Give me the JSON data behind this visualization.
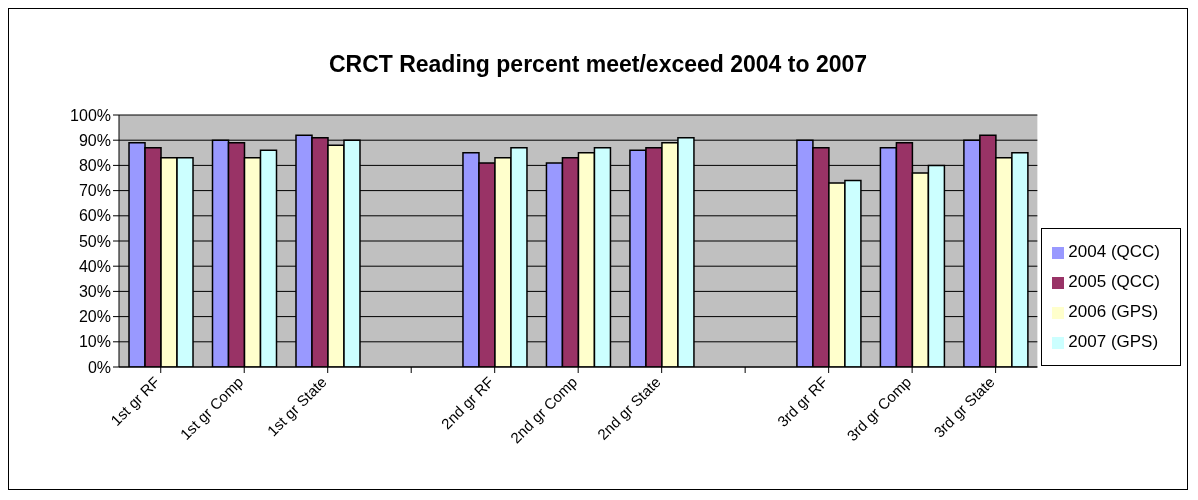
{
  "chart_data": {
    "type": "bar",
    "title": "CRCT Reading percent meet/exceed 2004 to 2007",
    "categories": [
      "1st gr RF",
      "1st gr Comp",
      "1st gr State",
      null,
      "2nd gr RF",
      "2nd gr Comp",
      "2nd gr State",
      null,
      "3rd gr RF",
      "3rd gr Comp",
      "3rd gr State"
    ],
    "series": [
      {
        "name": "2004 (QCC)",
        "color": "#9999ff",
        "values": [
          89,
          90,
          92,
          null,
          85,
          81,
          86,
          null,
          90,
          87,
          90
        ]
      },
      {
        "name": "2005 (QCC)",
        "color": "#993366",
        "values": [
          87,
          89,
          91,
          null,
          81,
          83,
          87,
          null,
          87,
          89,
          92
        ]
      },
      {
        "name": "2006 (GPS)",
        "color": "#ffffcc",
        "values": [
          83,
          83,
          88,
          null,
          83,
          85,
          89,
          null,
          73,
          77,
          83
        ]
      },
      {
        "name": "2007 (GPS)",
        "color": "#ccffff",
        "values": [
          83,
          86,
          90,
          null,
          87,
          87,
          91,
          null,
          74,
          80,
          85
        ]
      }
    ],
    "ylim": [
      0,
      100
    ],
    "yticks": [
      {
        "value": 0,
        "label": "0%"
      },
      {
        "value": 10,
        "label": "10%"
      },
      {
        "value": 20,
        "label": "20%"
      },
      {
        "value": 30,
        "label": "30%"
      },
      {
        "value": 40,
        "label": "40%"
      },
      {
        "value": 50,
        "label": "50%"
      },
      {
        "value": 60,
        "label": "60%"
      },
      {
        "value": 70,
        "label": "70%"
      },
      {
        "value": 80,
        "label": "80%"
      },
      {
        "value": 90,
        "label": "90%"
      },
      {
        "value": 100,
        "label": "100%"
      }
    ],
    "grid": "y",
    "legend": "right"
  }
}
